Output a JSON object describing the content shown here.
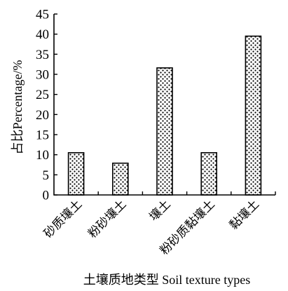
{
  "chart_data": {
    "type": "bar",
    "categories": [
      "砂质壤土",
      "粉砂壤土",
      "壤土",
      "粉砂质黏壤土",
      "黏壤土"
    ],
    "values": [
      10.5,
      7.9,
      31.6,
      10.5,
      39.5
    ],
    "xlabel": "土壤质地类型 Soil texture types",
    "ylabel": "占比Percentage/%",
    "ylim": [
      0,
      45
    ],
    "yticks": [
      0,
      5,
      10,
      15,
      20,
      25,
      30,
      35,
      40,
      45
    ],
    "bar_fill": "dotted-pattern",
    "grid": false,
    "colors": {
      "bar_background": "#ffffff",
      "bar_dots": "#000000",
      "axis": "#000000"
    }
  }
}
